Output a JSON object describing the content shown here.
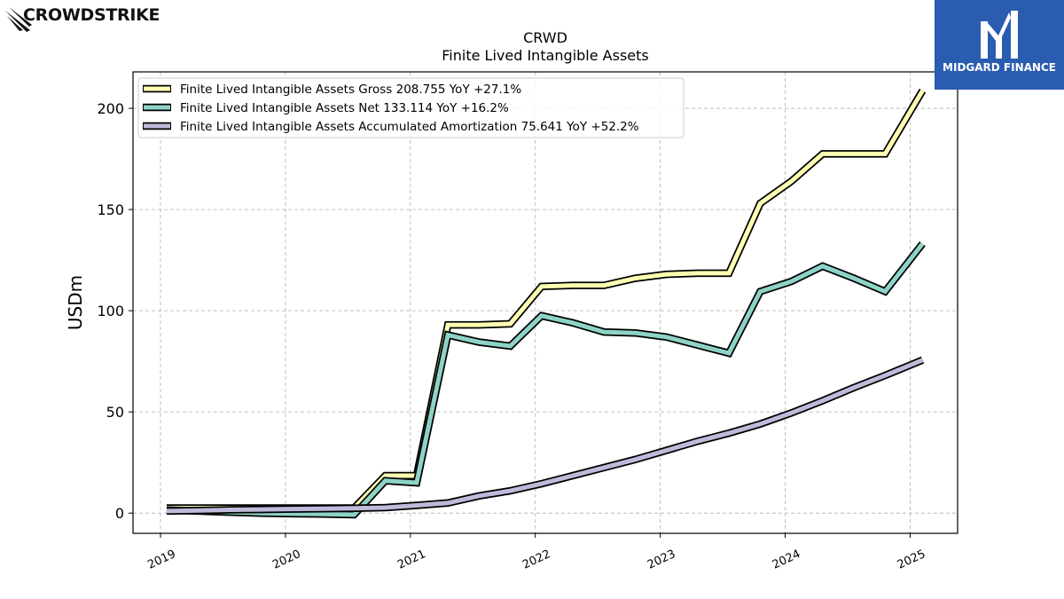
{
  "branding": {
    "left_logo_text": "CROWDSTRIKE",
    "right_logo_text": "MIDGARD FINANCE",
    "right_logo_color": "#2a5cb0"
  },
  "chart_data": {
    "type": "line",
    "title": "CRWD",
    "subtitle": "Finite Lived Intangible Assets",
    "xlabel": "",
    "ylabel": "USDm",
    "xlim": [
      2018.78,
      2025.38
    ],
    "ylim": [
      -10,
      218
    ],
    "yticks": [
      0,
      50,
      100,
      150,
      200
    ],
    "xticks": [
      2019,
      2020,
      2021,
      2022,
      2023,
      2024,
      2025
    ],
    "xtick_labels": [
      "2019",
      "2020",
      "2021",
      "2022",
      "2023",
      "2024",
      "2025"
    ],
    "grid": true,
    "legend_position": "top-left",
    "series": [
      {
        "name": "Finite Lived Intangible Assets Gross",
        "legend_label": "Finite Lived Intangible Assets Gross  208.755 YoY +27.1%",
        "color": "#ffffb3",
        "points": [
          [
            2019.05,
            2.5
          ],
          [
            2019.3,
            2.5
          ],
          [
            2019.55,
            2.5
          ],
          [
            2019.8,
            2.5
          ],
          [
            2020.05,
            2.5
          ],
          [
            2020.3,
            2.5
          ],
          [
            2020.55,
            2.5
          ],
          [
            2020.8,
            18.5
          ],
          [
            2021.05,
            18.5
          ],
          [
            2021.3,
            93.0
          ],
          [
            2021.55,
            93.0
          ],
          [
            2021.8,
            93.5
          ],
          [
            2022.05,
            112.0
          ],
          [
            2022.3,
            112.5
          ],
          [
            2022.55,
            112.5
          ],
          [
            2022.8,
            116.0
          ],
          [
            2023.05,
            118.0
          ],
          [
            2023.3,
            118.5
          ],
          [
            2023.55,
            118.5
          ],
          [
            2023.8,
            153.0
          ],
          [
            2024.05,
            164.0
          ],
          [
            2024.3,
            177.5
          ],
          [
            2024.55,
            177.5
          ],
          [
            2024.8,
            177.5
          ],
          [
            2025.1,
            208.755
          ]
        ]
      },
      {
        "name": "Finite Lived Intangible Assets Net",
        "legend_label": "Finite Lived Intangible Assets Net  133.114 YoY +16.2%",
        "color": "#8dd3c7",
        "points": [
          [
            2019.05,
            1.5
          ],
          [
            2019.3,
            1.0
          ],
          [
            2019.55,
            0.5
          ],
          [
            2019.8,
            0.0
          ],
          [
            2020.05,
            -0.3
          ],
          [
            2020.3,
            -0.5
          ],
          [
            2020.55,
            -0.8
          ],
          [
            2020.8,
            16.0
          ],
          [
            2021.05,
            15.0
          ],
          [
            2021.3,
            88.0
          ],
          [
            2021.55,
            84.5
          ],
          [
            2021.8,
            82.5
          ],
          [
            2022.05,
            97.5
          ],
          [
            2022.3,
            94.0
          ],
          [
            2022.55,
            89.5
          ],
          [
            2022.8,
            89.0
          ],
          [
            2023.05,
            87.0
          ],
          [
            2023.3,
            83.0
          ],
          [
            2023.55,
            79.0
          ],
          [
            2023.8,
            109.5
          ],
          [
            2024.05,
            114.5
          ],
          [
            2024.3,
            122.0
          ],
          [
            2024.55,
            116.0
          ],
          [
            2024.8,
            109.5
          ],
          [
            2025.1,
            133.114
          ]
        ]
      },
      {
        "name": "Finite Lived Intangible Assets Accumulated Amortization",
        "legend_label": "Finite Lived Intangible Assets Accumulated Amortization  75.641 YoY +52.2%",
        "color": "#bebada",
        "points": [
          [
            2019.05,
            1.0
          ],
          [
            2019.3,
            1.3
          ],
          [
            2019.55,
            1.6
          ],
          [
            2019.8,
            1.8
          ],
          [
            2020.05,
            2.0
          ],
          [
            2020.3,
            2.2
          ],
          [
            2020.55,
            2.4
          ],
          [
            2020.8,
            2.7
          ],
          [
            2021.05,
            3.8
          ],
          [
            2021.3,
            5.0
          ],
          [
            2021.55,
            8.5
          ],
          [
            2021.8,
            11.0
          ],
          [
            2022.05,
            14.5
          ],
          [
            2022.3,
            18.5
          ],
          [
            2022.55,
            22.5
          ],
          [
            2022.8,
            26.5
          ],
          [
            2023.05,
            31.0
          ],
          [
            2023.3,
            35.5
          ],
          [
            2023.55,
            39.5
          ],
          [
            2023.8,
            44.0
          ],
          [
            2024.05,
            49.5
          ],
          [
            2024.3,
            55.5
          ],
          [
            2024.55,
            62.0
          ],
          [
            2024.8,
            68.0
          ],
          [
            2025.1,
            75.641
          ]
        ]
      }
    ]
  }
}
